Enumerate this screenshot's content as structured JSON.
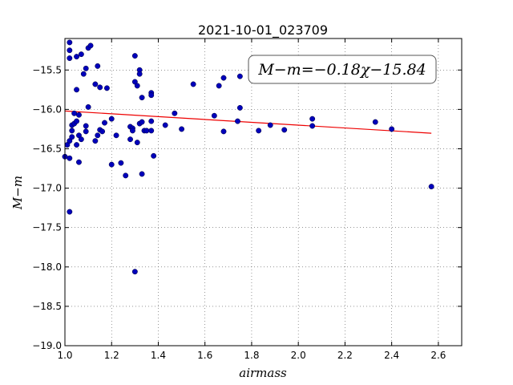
{
  "chart_data": {
    "type": "scatter",
    "title": "2021-10-01_023709",
    "xlabel": "airmass",
    "ylabel": "M−m",
    "annotation": "M−m=−0.18χ−15.84",
    "xlim": [
      1.0,
      2.7
    ],
    "ylim": [
      -19.0,
      -15.1
    ],
    "x_ticks": [
      1.0,
      1.2,
      1.4,
      1.6,
      1.8,
      2.0,
      2.2,
      2.4,
      2.6
    ],
    "x_tick_labels": [
      "1.0",
      "1.2",
      "1.4",
      "1.6",
      "1.8",
      "2.0",
      "2.2",
      "2.4",
      "2.6"
    ],
    "y_ticks": [
      -15.5,
      -16.0,
      -16.5,
      -17.0,
      -17.5,
      -18.0,
      -18.5,
      -19.0
    ],
    "y_tick_labels": [
      "−15.5",
      "−16.0",
      "−16.5",
      "−17.0",
      "−17.5",
      "−18.0",
      "−18.5",
      "−19.0"
    ],
    "grid": true,
    "point_color": "#0000bb",
    "fit_color": "#ee0000",
    "fit_line": {
      "slope": -0.18,
      "intercept": -15.84,
      "x_range": [
        1.0,
        2.57
      ]
    },
    "points": [
      [
        1.0,
        -16.6
      ],
      [
        1.01,
        -16.45
      ],
      [
        1.02,
        -16.4
      ],
      [
        1.02,
        -16.62
      ],
      [
        1.02,
        -17.3
      ],
      [
        1.02,
        -15.15
      ],
      [
        1.02,
        -15.25
      ],
      [
        1.02,
        -15.35
      ],
      [
        1.03,
        -16.2
      ],
      [
        1.03,
        -16.27
      ],
      [
        1.03,
        -16.35
      ],
      [
        1.04,
        -16.05
      ],
      [
        1.04,
        -16.18
      ],
      [
        1.05,
        -16.15
      ],
      [
        1.05,
        -16.45
      ],
      [
        1.05,
        -15.75
      ],
      [
        1.05,
        -15.33
      ],
      [
        1.06,
        -16.07
      ],
      [
        1.06,
        -16.67
      ],
      [
        1.06,
        -16.33
      ],
      [
        1.07,
        -15.3
      ],
      [
        1.07,
        -16.38
      ],
      [
        1.08,
        -15.55
      ],
      [
        1.09,
        -15.48
      ],
      [
        1.09,
        -16.28
      ],
      [
        1.09,
        -16.21
      ],
      [
        1.1,
        -15.97
      ],
      [
        1.1,
        -15.22
      ],
      [
        1.11,
        -15.19
      ],
      [
        1.13,
        -16.4
      ],
      [
        1.13,
        -15.68
      ],
      [
        1.14,
        -16.33
      ],
      [
        1.14,
        -15.45
      ],
      [
        1.15,
        -15.72
      ],
      [
        1.15,
        -16.26
      ],
      [
        1.16,
        -16.28
      ],
      [
        1.17,
        -16.17
      ],
      [
        1.18,
        -15.73
      ],
      [
        1.2,
        -16.12
      ],
      [
        1.2,
        -16.7
      ],
      [
        1.22,
        -16.33
      ],
      [
        1.24,
        -16.68
      ],
      [
        1.26,
        -16.84
      ],
      [
        1.28,
        -16.22
      ],
      [
        1.28,
        -16.38
      ],
      [
        1.29,
        -16.24
      ],
      [
        1.29,
        -16.27
      ],
      [
        1.3,
        -15.32
      ],
      [
        1.3,
        -15.65
      ],
      [
        1.31,
        -15.7
      ],
      [
        1.31,
        -16.42
      ],
      [
        1.32,
        -16.18
      ],
      [
        1.32,
        -15.5
      ],
      [
        1.32,
        -15.55
      ],
      [
        1.33,
        -16.16
      ],
      [
        1.33,
        -15.85
      ],
      [
        1.33,
        -16.82
      ],
      [
        1.34,
        -16.27
      ],
      [
        1.35,
        -16.27
      ],
      [
        1.37,
        -15.79
      ],
      [
        1.37,
        -15.82
      ],
      [
        1.37,
        -16.15
      ],
      [
        1.37,
        -16.27
      ],
      [
        1.38,
        -16.59
      ],
      [
        1.3,
        -18.06
      ],
      [
        1.43,
        -16.2
      ],
      [
        1.47,
        -16.05
      ],
      [
        1.5,
        -16.25
      ],
      [
        1.55,
        -15.68
      ],
      [
        1.64,
        -16.08
      ],
      [
        1.66,
        -15.7
      ],
      [
        1.68,
        -15.6
      ],
      [
        1.68,
        -16.28
      ],
      [
        1.74,
        -16.15
      ],
      [
        1.75,
        -15.98
      ],
      [
        1.75,
        -15.58
      ],
      [
        1.83,
        -16.27
      ],
      [
        1.88,
        -16.2
      ],
      [
        1.94,
        -16.26
      ],
      [
        2.06,
        -16.12
      ],
      [
        2.06,
        -16.21
      ],
      [
        2.33,
        -16.16
      ],
      [
        2.4,
        -16.25
      ],
      [
        2.57,
        -16.98
      ]
    ]
  }
}
